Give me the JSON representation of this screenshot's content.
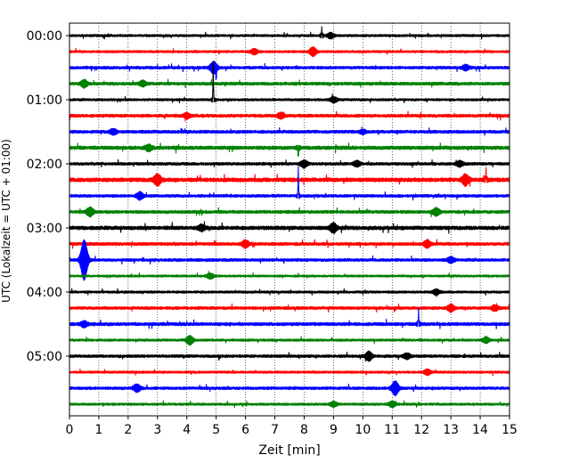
{
  "chart_data": {
    "type": "line",
    "title": "",
    "xlabel": "Zeit  [min]",
    "ylabel": "UTC (Lokalzeit = UTC + 01:00)",
    "xlim": [
      0,
      15
    ],
    "x_ticks": [
      "0",
      "1",
      "2",
      "3",
      "4",
      "5",
      "6",
      "7",
      "8",
      "9",
      "10",
      "11",
      "12",
      "13",
      "14",
      "15"
    ],
    "y_ticks": [
      "00:00",
      "01:00",
      "02:00",
      "03:00",
      "04:00",
      "05:00"
    ],
    "grid": "vertical-dotted",
    "legend": "none",
    "trace_colors": [
      "#000000",
      "#ff0000",
      "#0000ff",
      "#008000"
    ],
    "trace_interval_minutes": 15,
    "series": [
      {
        "start": "00:00",
        "color": "#000000",
        "noise": 1.0,
        "bursts": [
          {
            "x": 8.6,
            "amp": 7,
            "dir": 1
          },
          {
            "x": 8.9,
            "amp": 3,
            "dir": 0
          }
        ]
      },
      {
        "start": "00:15",
        "color": "#ff0000",
        "noise": 1.0,
        "bursts": [
          {
            "x": 8.3,
            "amp": 5,
            "dir": 0
          },
          {
            "x": 6.3,
            "amp": 3,
            "dir": 0
          }
        ]
      },
      {
        "start": "00:30",
        "color": "#0000ff",
        "noise": 1.2,
        "bursts": [
          {
            "x": 5.0,
            "amp": 14,
            "dir": -1
          },
          {
            "x": 4.9,
            "amp": 6,
            "dir": 0
          },
          {
            "x": 13.5,
            "amp": 3,
            "dir": 0
          }
        ]
      },
      {
        "start": "00:45",
        "color": "#008000",
        "noise": 1.3,
        "bursts": [
          {
            "x": 0.5,
            "amp": 4,
            "dir": 0
          },
          {
            "x": 2.5,
            "amp": 3,
            "dir": 0
          }
        ]
      },
      {
        "start": "01:00",
        "color": "#000000",
        "noise": 1.0,
        "bursts": [
          {
            "x": 9.0,
            "amp": 3,
            "dir": 0
          },
          {
            "x": 4.9,
            "amp": 40,
            "dir": 1
          }
        ]
      },
      {
        "start": "01:15",
        "color": "#ff0000",
        "noise": 1.3,
        "bursts": [
          {
            "x": 4.0,
            "amp": 3,
            "dir": 0
          },
          {
            "x": 7.2,
            "amp": 3,
            "dir": 0
          }
        ]
      },
      {
        "start": "01:30",
        "color": "#0000ff",
        "noise": 1.3,
        "bursts": [
          {
            "x": 1.5,
            "amp": 3,
            "dir": 0
          },
          {
            "x": 10.0,
            "amp": 2,
            "dir": 0
          }
        ]
      },
      {
        "start": "01:45",
        "color": "#008000",
        "noise": 1.5,
        "bursts": [
          {
            "x": 7.8,
            "amp": 12,
            "dir": -1
          },
          {
            "x": 2.7,
            "amp": 3,
            "dir": 0
          }
        ]
      },
      {
        "start": "02:00",
        "color": "#000000",
        "noise": 1.2,
        "bursts": [
          {
            "x": 8.0,
            "amp": 4,
            "dir": 0
          },
          {
            "x": 9.8,
            "amp": 3,
            "dir": 0
          },
          {
            "x": 13.3,
            "amp": 3,
            "dir": 0
          }
        ]
      },
      {
        "start": "02:15",
        "color": "#ff0000",
        "noise": 1.7,
        "bursts": [
          {
            "x": 3.0,
            "amp": 6,
            "dir": 0
          },
          {
            "x": 13.5,
            "amp": 6,
            "dir": 0
          },
          {
            "x": 14.2,
            "amp": 10,
            "dir": 1
          }
        ]
      },
      {
        "start": "02:30",
        "color": "#0000ff",
        "noise": 1.2,
        "bursts": [
          {
            "x": 7.8,
            "amp": 30,
            "dir": 1
          },
          {
            "x": 2.4,
            "amp": 4,
            "dir": 0
          }
        ]
      },
      {
        "start": "02:45",
        "color": "#008000",
        "noise": 1.3,
        "bursts": [
          {
            "x": 0.7,
            "amp": 5,
            "dir": 0
          },
          {
            "x": 12.5,
            "amp": 4,
            "dir": 0
          }
        ]
      },
      {
        "start": "03:00",
        "color": "#000000",
        "noise": 1.6,
        "bursts": [
          {
            "x": 9.0,
            "amp": 5,
            "dir": 0
          },
          {
            "x": 4.5,
            "amp": 3,
            "dir": 0
          }
        ]
      },
      {
        "start": "03:15",
        "color": "#ff0000",
        "noise": 1.3,
        "bursts": [
          {
            "x": 6.0,
            "amp": 4,
            "dir": 0
          },
          {
            "x": 12.2,
            "amp": 4,
            "dir": 0
          }
        ]
      },
      {
        "start": "03:30",
        "color": "#0000ff",
        "noise": 1.2,
        "bursts": [
          {
            "x": 0.5,
            "amp": 24,
            "dir": 0
          },
          {
            "x": 13.0,
            "amp": 3,
            "dir": 0
          }
        ]
      },
      {
        "start": "03:45",
        "color": "#008000",
        "noise": 0.9,
        "bursts": [
          {
            "x": 4.8,
            "amp": 3,
            "dir": 0
          }
        ]
      },
      {
        "start": "04:00",
        "color": "#000000",
        "noise": 1.0,
        "bursts": [
          {
            "x": 12.5,
            "amp": 3,
            "dir": 0
          }
        ]
      },
      {
        "start": "04:15",
        "color": "#ff0000",
        "noise": 1.2,
        "bursts": [
          {
            "x": 13.0,
            "amp": 4,
            "dir": 0
          },
          {
            "x": 14.5,
            "amp": 3,
            "dir": 0
          }
        ]
      },
      {
        "start": "04:30",
        "color": "#0000ff",
        "noise": 1.4,
        "bursts": [
          {
            "x": 11.9,
            "amp": 14,
            "dir": 1
          },
          {
            "x": 0.5,
            "amp": 3,
            "dir": 0
          }
        ]
      },
      {
        "start": "04:45",
        "color": "#008000",
        "noise": 1.0,
        "bursts": [
          {
            "x": 4.1,
            "amp": 5,
            "dir": 0
          },
          {
            "x": 14.2,
            "amp": 3,
            "dir": 0
          }
        ]
      },
      {
        "start": "05:00",
        "color": "#000000",
        "noise": 1.2,
        "bursts": [
          {
            "x": 10.2,
            "amp": 5,
            "dir": 0
          },
          {
            "x": 11.5,
            "amp": 3,
            "dir": 0
          }
        ]
      },
      {
        "start": "05:15",
        "color": "#ff0000",
        "noise": 1.0,
        "bursts": [
          {
            "x": 12.2,
            "amp": 3,
            "dir": 0
          }
        ]
      },
      {
        "start": "05:30",
        "color": "#0000ff",
        "noise": 1.2,
        "bursts": [
          {
            "x": 11.1,
            "amp": 8,
            "dir": 0
          },
          {
            "x": 2.3,
            "amp": 4,
            "dir": 0
          }
        ]
      },
      {
        "start": "05:45",
        "color": "#008000",
        "noise": 1.0,
        "bursts": [
          {
            "x": 11.0,
            "amp": 3,
            "dir": 0
          },
          {
            "x": 9.0,
            "amp": 3,
            "dir": 0
          }
        ]
      }
    ]
  }
}
